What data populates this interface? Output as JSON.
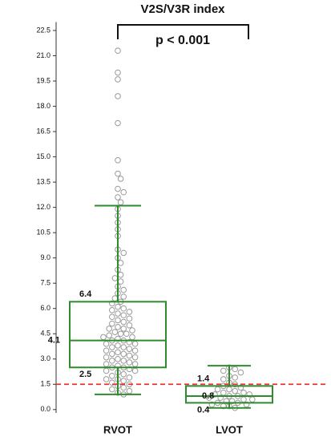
{
  "chart_data": {
    "type": "box",
    "title": "V2S/V3R index",
    "annotation": "p < 0.001",
    "categories": [
      "RVOT",
      "LVOT"
    ],
    "color": "#2e8b2e",
    "point_color": "#9a9a9a",
    "ref_line": {
      "value": 1.5,
      "color": "#e8342c"
    },
    "ylim": [
      -0.2,
      23
    ],
    "yticks": [
      {
        "value": 0,
        "label": "0.0"
      },
      1.5,
      {
        "value": 3,
        "label": "3.0"
      },
      4.5,
      {
        "value": 6,
        "label": "6.0"
      },
      7.5,
      {
        "value": 9,
        "label": "9.0"
      },
      10.5,
      {
        "value": 12,
        "label": "12.0"
      },
      13.5,
      {
        "value": 15,
        "label": "15.0"
      },
      16.5,
      {
        "value": 18,
        "label": "18.0"
      },
      19.5,
      {
        "value": 21,
        "label": "21.0"
      },
      22.5
    ],
    "boxes": [
      {
        "whisker_low": 0.9,
        "q1": 2.5,
        "median": 4.1,
        "q3": 6.4,
        "whisker_high": 12.1,
        "points": [
          21.3,
          20.0,
          19.6,
          18.6,
          17.0,
          14.8,
          14.0,
          13.7,
          13.1,
          12.9,
          12.6,
          12.3,
          11.9,
          11.5,
          11.1,
          10.7,
          10.3,
          9.5,
          9.3,
          9.0,
          8.7,
          8.3,
          8.0,
          7.8,
          7.6,
          7.3,
          7.1,
          6.9,
          6.7,
          6.6,
          6.4,
          6.3,
          6.1,
          6.0,
          5.9,
          5.8,
          5.7,
          5.6,
          5.5,
          5.4,
          5.3,
          5.2,
          5.1,
          5.0,
          4.9,
          4.8,
          4.8,
          4.7,
          4.6,
          4.5,
          4.5,
          4.4,
          4.3,
          4.3,
          4.2,
          4.1,
          4.1,
          4.0,
          3.9,
          3.9,
          3.8,
          3.7,
          3.7,
          3.6,
          3.5,
          3.5,
          3.4,
          3.3,
          3.3,
          3.2,
          3.1,
          3.1,
          3.0,
          2.9,
          2.9,
          2.8,
          2.7,
          2.7,
          2.6,
          2.5,
          2.5,
          2.4,
          2.3,
          2.3,
          2.2,
          2.1,
          2.0,
          1.9,
          1.8,
          1.8,
          1.7,
          1.6,
          1.5,
          1.4,
          1.3,
          1.2,
          1.1,
          1.0,
          0.9
        ]
      },
      {
        "whisker_low": 0.1,
        "q1": 0.4,
        "median": 0.8,
        "q3": 1.4,
        "whisker_high": 2.6,
        "points": [
          2.5,
          2.4,
          2.3,
          2.2,
          2.0,
          1.9,
          1.8,
          1.6,
          1.5,
          1.4,
          1.3,
          1.2,
          1.2,
          1.1,
          1.0,
          1.0,
          0.9,
          0.9,
          0.8,
          0.8,
          0.7,
          0.7,
          0.6,
          0.6,
          0.5,
          0.5,
          0.4,
          0.4,
          0.3,
          0.3,
          0.2,
          0.2,
          0.1
        ]
      }
    ]
  }
}
